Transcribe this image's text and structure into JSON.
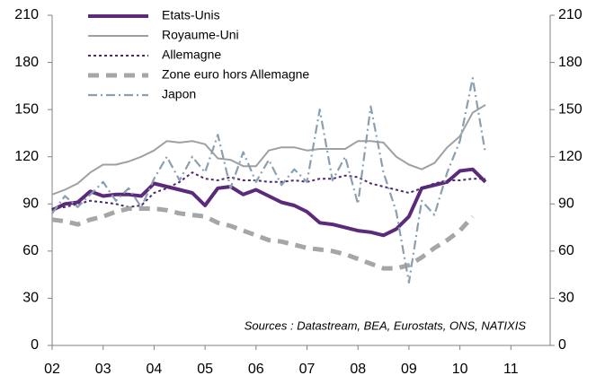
{
  "chart_data": {
    "type": "line",
    "annotation": "Sources : Datastream, BEA, Eurostats, ONS, NATIXIS",
    "x": [
      2002,
      2002.25,
      2002.5,
      2002.75,
      2003,
      2003.25,
      2003.5,
      2003.75,
      2004,
      2004.25,
      2004.5,
      2004.75,
      2005,
      2005.25,
      2005.5,
      2005.75,
      2006,
      2006.25,
      2006.5,
      2006.75,
      2007,
      2007.25,
      2007.5,
      2007.75,
      2008,
      2008.25,
      2008.5,
      2008.75,
      2009,
      2009.25,
      2009.5,
      2009.75,
      2010,
      2010.25,
      2010.5
    ],
    "series": [
      {
        "name": "Etats-Unis",
        "color": "#5b2a7a",
        "linestyle": "solid-thick",
        "values": [
          86,
          90,
          91,
          98,
          95,
          96,
          96,
          95,
          103,
          101,
          99,
          97,
          89,
          100,
          101,
          96,
          99,
          95,
          91,
          89,
          85,
          78,
          77,
          75,
          73,
          72,
          70,
          74,
          82,
          100,
          102,
          104,
          111,
          112,
          104
        ]
      },
      {
        "name": "Royaume-Uni",
        "color": "#a0a0a0",
        "linestyle": "solid",
        "values": [
          96,
          99,
          103,
          110,
          115,
          115,
          117,
          120,
          124,
          130,
          129,
          130,
          128,
          119,
          118,
          114,
          114,
          124,
          126,
          126,
          124,
          125,
          125,
          125,
          130,
          130,
          129,
          120,
          115,
          112,
          116,
          126,
          133,
          148,
          153
        ]
      },
      {
        "name": "Allemagne",
        "color": "#4b2a6b",
        "linestyle": "dotted",
        "values": [
          87,
          88,
          90,
          92,
          91,
          90,
          88,
          89,
          97,
          100,
          104,
          110,
          106,
          105,
          107,
          105,
          105,
          104,
          104,
          105,
          104,
          106,
          106,
          108,
          107,
          103,
          101,
          99,
          97,
          100,
          103,
          105,
          105,
          106,
          106
        ]
      },
      {
        "name": "Zone euro hors Allemagne",
        "color": "#a6a6a6",
        "linestyle": "dashed-thick",
        "values": [
          80,
          79,
          77,
          80,
          82,
          85,
          87,
          87,
          87,
          86,
          84,
          83,
          82,
          78,
          76,
          73,
          70,
          67,
          66,
          64,
          62,
          61,
          60,
          58,
          55,
          52,
          49,
          49,
          51,
          56,
          62,
          67,
          73,
          82,
          null
        ]
      },
      {
        "name": "Japon",
        "color": "#8aa0b0",
        "linestyle": "dashdot",
        "values": [
          84,
          95,
          88,
          96,
          104,
          92,
          100,
          88,
          106,
          120,
          105,
          120,
          110,
          134,
          100,
          123,
          104,
          118,
          102,
          112,
          104,
          150,
          105,
          120,
          90,
          152,
          110,
          85,
          40,
          92,
          83,
          110,
          130,
          170,
          122
        ]
      }
    ],
    "xlim": [
      2002,
      2011.77
    ],
    "xticks": [
      {
        "value": 2002,
        "label": "02"
      },
      {
        "value": 2003,
        "label": "03"
      },
      {
        "value": 2004,
        "label": "04"
      },
      {
        "value": 2005,
        "label": "05"
      },
      {
        "value": 2006,
        "label": "06"
      },
      {
        "value": 2007,
        "label": "07"
      },
      {
        "value": 2008,
        "label": "08"
      },
      {
        "value": 2009,
        "label": "09"
      },
      {
        "value": 2010,
        "label": "10"
      },
      {
        "value": 2011,
        "label": "11"
      }
    ],
    "ylim": [
      0,
      210
    ],
    "yticks": [
      0,
      30,
      60,
      90,
      120,
      150,
      180,
      210
    ],
    "y2lim": [
      0,
      210
    ],
    "y2ticks": [
      0,
      30,
      60,
      90,
      120,
      150,
      180,
      210
    ]
  }
}
